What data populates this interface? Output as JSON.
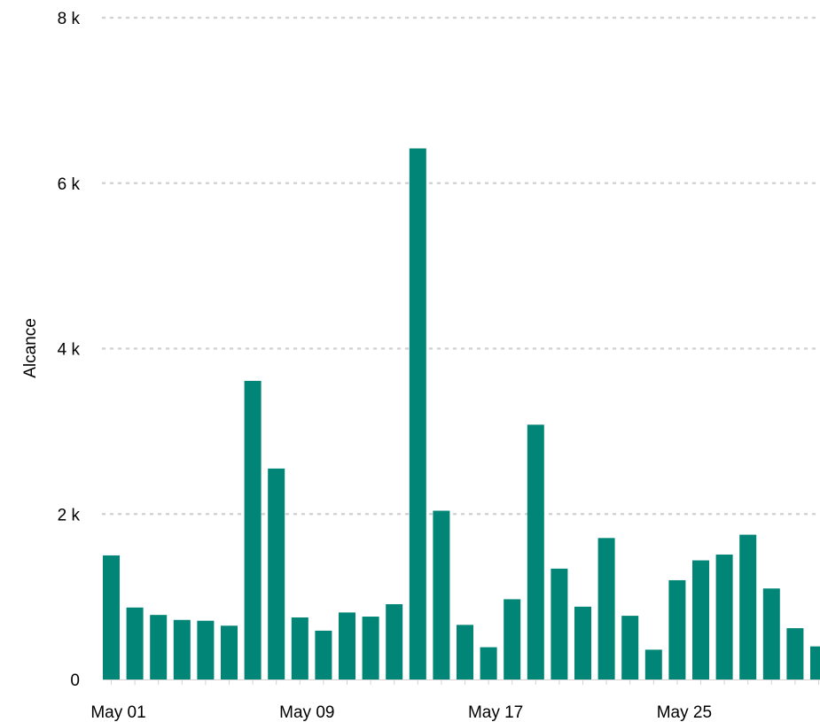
{
  "chart_data": {
    "type": "bar",
    "ylabel": "Alcance",
    "xlabel": "",
    "ylim": [
      0,
      8000
    ],
    "y_ticks": [
      {
        "value": 0,
        "label": "0"
      },
      {
        "value": 2000,
        "label": "2 k"
      },
      {
        "value": 4000,
        "label": "4 k"
      },
      {
        "value": 6000,
        "label": "6 k"
      },
      {
        "value": 8000,
        "label": "8 k"
      }
    ],
    "x_tick_labels": [
      {
        "index": 0,
        "label": "May 01"
      },
      {
        "index": 8,
        "label": "May 09"
      },
      {
        "index": 16,
        "label": "May 17"
      },
      {
        "index": 24,
        "label": "May 25"
      }
    ],
    "grid": true,
    "bar_color": "#008576",
    "categories": [
      "May 01",
      "May 02",
      "May 03",
      "May 04",
      "May 05",
      "May 06",
      "May 07",
      "May 08",
      "May 09",
      "May 10",
      "May 11",
      "May 12",
      "May 13",
      "May 14",
      "May 15",
      "May 16",
      "May 17",
      "May 18",
      "May 19",
      "May 20",
      "May 21",
      "May 22",
      "May 23",
      "May 24",
      "May 25",
      "May 26",
      "May 27",
      "May 28",
      "May 29",
      "May 30",
      "May 31"
    ],
    "values": [
      1500,
      870,
      780,
      720,
      710,
      650,
      3610,
      2550,
      750,
      590,
      810,
      760,
      910,
      6420,
      2040,
      660,
      390,
      970,
      3080,
      1340,
      880,
      1710,
      770,
      360,
      1200,
      1440,
      1510,
      1750,
      1100,
      620,
      400
    ]
  }
}
